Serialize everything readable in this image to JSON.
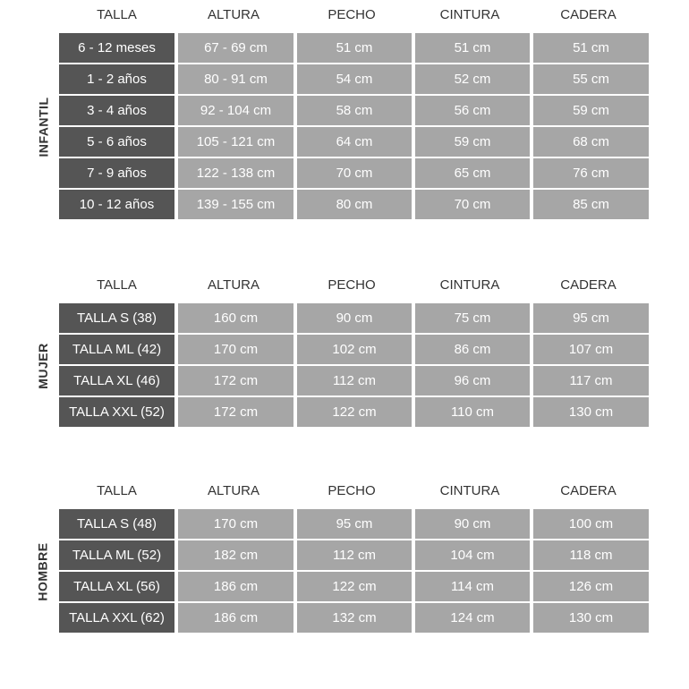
{
  "headers": [
    "TALLA",
    "ALTURA",
    "PECHO",
    "CINTURA",
    "CADERA"
  ],
  "colors": {
    "size_cell": "#555555",
    "value_cell": "#a6a6a6",
    "text": "#ffffff",
    "header_text": "#333333"
  },
  "sections": [
    {
      "label": "INFANTIL",
      "rows": [
        [
          "6 - 12 meses",
          "67 - 69 cm",
          "51 cm",
          "51 cm",
          "51 cm"
        ],
        [
          "1 - 2 años",
          "80 - 91 cm",
          "54 cm",
          "52 cm",
          "55 cm"
        ],
        [
          "3 - 4 años",
          "92 - 104 cm",
          "58 cm",
          "56 cm",
          "59 cm"
        ],
        [
          "5 - 6 años",
          "105 - 121 cm",
          "64 cm",
          "59 cm",
          "68 cm"
        ],
        [
          "7 - 9 años",
          "122 - 138 cm",
          "70 cm",
          "65 cm",
          "76 cm"
        ],
        [
          "10 - 12 años",
          "139 - 155 cm",
          "80 cm",
          "70 cm",
          "85 cm"
        ]
      ]
    },
    {
      "label": "MUJER",
      "rows": [
        [
          "TALLA S (38)",
          "160 cm",
          "90 cm",
          "75 cm",
          "95 cm"
        ],
        [
          "TALLA ML (42)",
          "170 cm",
          "102 cm",
          "86 cm",
          "107 cm"
        ],
        [
          "TALLA XL (46)",
          "172 cm",
          "112 cm",
          "96 cm",
          "117 cm"
        ],
        [
          "TALLA XXL (52)",
          "172 cm",
          "122 cm",
          "110 cm",
          "130 cm"
        ]
      ]
    },
    {
      "label": "HOMBRE",
      "rows": [
        [
          "TALLA S (48)",
          "170 cm",
          "95 cm",
          "90 cm",
          "100 cm"
        ],
        [
          "TALLA ML (52)",
          "182 cm",
          "112 cm",
          "104 cm",
          "118 cm"
        ],
        [
          "TALLA XL (56)",
          "186 cm",
          "122 cm",
          "114 cm",
          "126 cm"
        ],
        [
          "TALLA XXL (62)",
          "186 cm",
          "132 cm",
          "124 cm",
          "130 cm"
        ]
      ]
    }
  ]
}
